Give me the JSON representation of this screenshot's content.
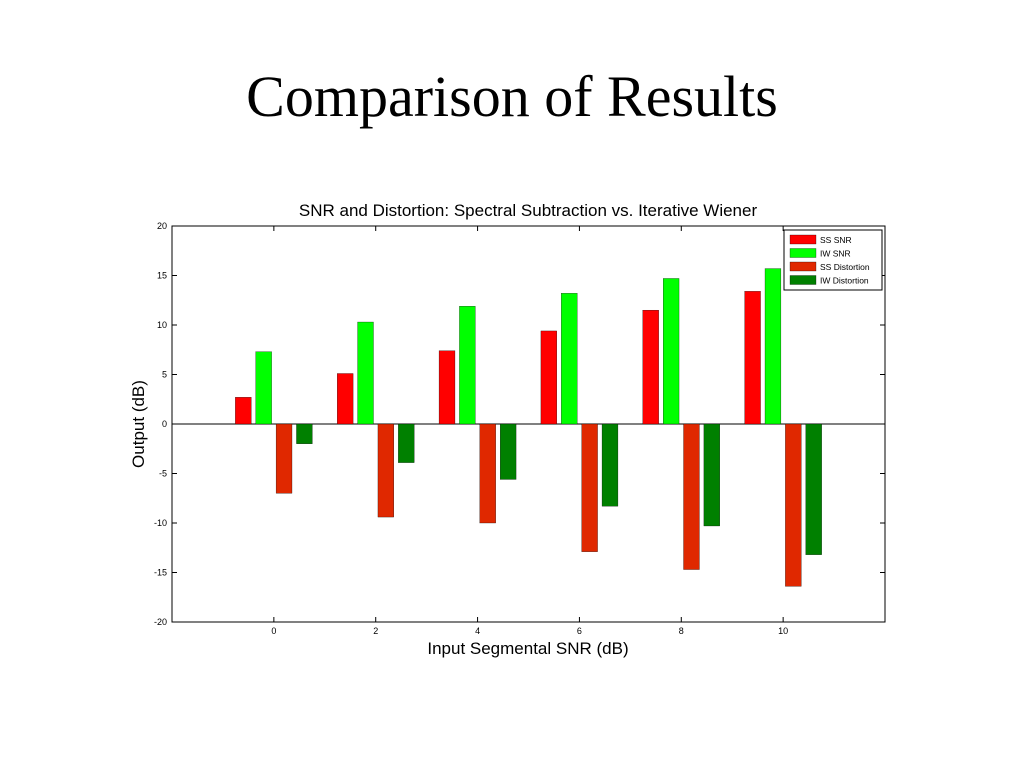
{
  "slide": {
    "title": "Comparison of Results"
  },
  "chart_data": {
    "type": "bar",
    "title": "SNR and Distortion: Spectral Subtraction vs. Iterative Wiener",
    "xlabel": "Input Segmental SNR (dB)",
    "ylabel": "Output (dB)",
    "categories": [
      "0",
      "2",
      "4",
      "6",
      "8",
      "10"
    ],
    "x": [
      0,
      2,
      4,
      6,
      8,
      10
    ],
    "xlim": [
      -2,
      12
    ],
    "ylim": [
      -20,
      20
    ],
    "xticks": [
      "0",
      "2",
      "4",
      "6",
      "8",
      "10"
    ],
    "yticks": [
      "20",
      "15",
      "10",
      "5",
      "0",
      "-5",
      "-10",
      "-15",
      "-20"
    ],
    "grid": false,
    "legend_position": "top-right",
    "series": [
      {
        "name": "SS SNR",
        "color": "#ff0000",
        "values": [
          2.7,
          5.1,
          7.4,
          9.4,
          11.5,
          13.4
        ]
      },
      {
        "name": "IW SNR",
        "color": "#00ff00",
        "values": [
          7.3,
          10.3,
          11.9,
          13.2,
          14.7,
          15.7
        ]
      },
      {
        "name": "SS Distortion",
        "color": "#e02800",
        "values": [
          -7.0,
          -9.4,
          -10.0,
          -12.9,
          -14.7,
          -16.4
        ]
      },
      {
        "name": "IW Distortion",
        "color": "#008000",
        "values": [
          -2.0,
          -3.9,
          -5.6,
          -8.3,
          -10.3,
          -13.2
        ]
      }
    ]
  }
}
